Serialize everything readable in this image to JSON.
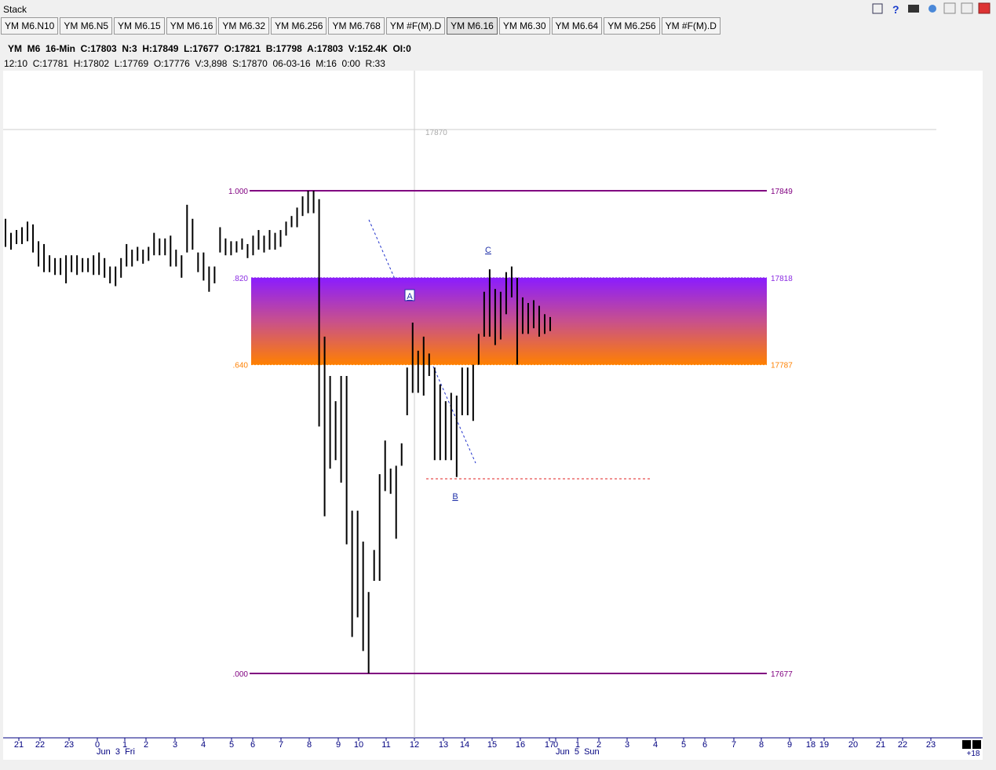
{
  "window": {
    "title": "Stack"
  },
  "tabs": [
    "YM M6.N10",
    "YM M6.N5",
    "YM M6.15",
    "YM M6.16",
    "YM M6.32",
    "YM M6.256",
    "YM M6.768",
    "YM #F(M).D",
    "YM M6.16",
    "YM M6.30",
    "YM M6.64",
    "YM M6.256",
    "YM #F(M).D"
  ],
  "header": {
    "line1": "YM  M6  16-Min  C:17803  N:3  H:17849  L:17677  O:17821  B:17798  A:17803  V:152.4K  OI:0",
    "line2": "12:10  C:17781  H:17802  L:17769  O:17776  V:3,898  S:17870  06-03-16  M:16  0:00  R:33"
  },
  "chart": {
    "cursor_price": 17870,
    "levels": [
      {
        "ratio": "1.000",
        "price": 17849,
        "color": "#800080"
      },
      {
        "ratio": ".820",
        "price": 17818,
        "color": "#8a2be2"
      },
      {
        "ratio": ".640",
        "price": 17787,
        "color": "#ff8000"
      },
      {
        "ratio": ".000",
        "price": 17677,
        "color": "#800080"
      }
    ],
    "annotations": [
      "A",
      "B",
      "C"
    ],
    "bar_color": "#000000",
    "bars": [
      [
        17839,
        17829
      ],
      [
        17834,
        17828
      ],
      [
        17835,
        17830
      ],
      [
        17836,
        17830
      ],
      [
        17838,
        17831
      ],
      [
        17837,
        17827
      ],
      [
        17831,
        17822
      ],
      [
        17830,
        17820
      ],
      [
        17826,
        17820
      ],
      [
        17825,
        17819
      ],
      [
        17825,
        17819
      ],
      [
        17826,
        17816
      ],
      [
        17826,
        17820
      ],
      [
        17826,
        17819
      ],
      [
        17825,
        17820
      ],
      [
        17825,
        17820
      ],
      [
        17826,
        17819
      ],
      [
        17827,
        17819
      ],
      [
        17825,
        17818
      ],
      [
        17822,
        17816
      ],
      [
        17822,
        17815
      ],
      [
        17825,
        17818
      ],
      [
        17830,
        17822
      ],
      [
        17828,
        17822
      ],
      [
        17829,
        17824
      ],
      [
        17828,
        17823
      ],
      [
        17829,
        17824
      ],
      [
        17834,
        17826
      ],
      [
        17832,
        17826
      ],
      [
        17832,
        17826
      ],
      [
        17833,
        17822
      ],
      [
        17828,
        17822
      ],
      [
        17826,
        17818
      ],
      [
        17844,
        17827
      ],
      [
        17839,
        17828
      ],
      [
        17827,
        17820
      ],
      [
        17827,
        17817
      ],
      [
        17822,
        17813
      ],
      [
        17822,
        17816
      ],
      [
        17836,
        17827
      ],
      [
        17832,
        17826
      ],
      [
        17831,
        17826
      ],
      [
        17831,
        17827
      ],
      [
        17832,
        17828
      ],
      [
        17830,
        17825
      ],
      [
        17833,
        17826
      ],
      [
        17835,
        17828
      ],
      [
        17833,
        17827
      ],
      [
        17835,
        17828
      ],
      [
        17834,
        17828
      ],
      [
        17835,
        17829
      ],
      [
        17838,
        17833
      ],
      [
        17840,
        17836
      ],
      [
        17843,
        17836
      ],
      [
        17847,
        17840
      ],
      [
        17849,
        17841
      ],
      [
        17849,
        17841
      ],
      [
        17846,
        17765
      ],
      [
        17797,
        17733
      ],
      [
        17783,
        17750
      ],
      [
        17774,
        17753
      ],
      [
        17783,
        17745
      ],
      [
        17783,
        17723
      ],
      [
        17735,
        17690
      ],
      [
        17735,
        17697
      ],
      [
        17724,
        17685
      ],
      [
        17706,
        17677
      ],
      [
        17721,
        17710
      ],
      [
        17748,
        17710
      ],
      [
        17760,
        17742
      ],
      [
        17750,
        17741
      ],
      [
        17751,
        17725
      ],
      [
        17759,
        17751
      ],
      [
        17786,
        17769
      ],
      [
        17802,
        17777
      ],
      [
        17792,
        17777
      ],
      [
        17797,
        17776
      ],
      [
        17791,
        17783
      ],
      [
        17786,
        17753
      ],
      [
        17780,
        17753
      ],
      [
        17774,
        17753
      ],
      [
        17777,
        17753
      ],
      [
        17776,
        17747
      ],
      [
        17786,
        17769
      ],
      [
        17786,
        17769
      ],
      [
        17787,
        17767
      ],
      [
        17798,
        17787
      ],
      [
        17813,
        17797
      ],
      [
        17821,
        17797
      ],
      [
        17814,
        17794
      ],
      [
        17813,
        17796
      ],
      [
        17820,
        17805
      ],
      [
        17822,
        17811
      ],
      [
        17818,
        17787
      ],
      [
        17811,
        17798
      ],
      [
        17809,
        17798
      ],
      [
        17810,
        17800
      ],
      [
        17808,
        17797
      ],
      [
        17805,
        17798
      ],
      [
        17804,
        17799
      ]
    ],
    "time_labels": [
      "21",
      "22",
      "23",
      "0",
      "1",
      "2",
      "3",
      "4",
      "5",
      "6",
      "7",
      "8",
      "9",
      "10",
      "11",
      "12",
      "13",
      "14",
      "15",
      "16",
      "17",
      "0",
      "1",
      "2",
      "3",
      "4",
      "5",
      "6",
      "7",
      "8",
      "9",
      "18",
      "19",
      "20",
      "21",
      "22",
      "23"
    ],
    "date_labels": [
      "Jun  3  Fri",
      "Jun  5  Sun"
    ],
    "bar_count_label": "+18"
  }
}
